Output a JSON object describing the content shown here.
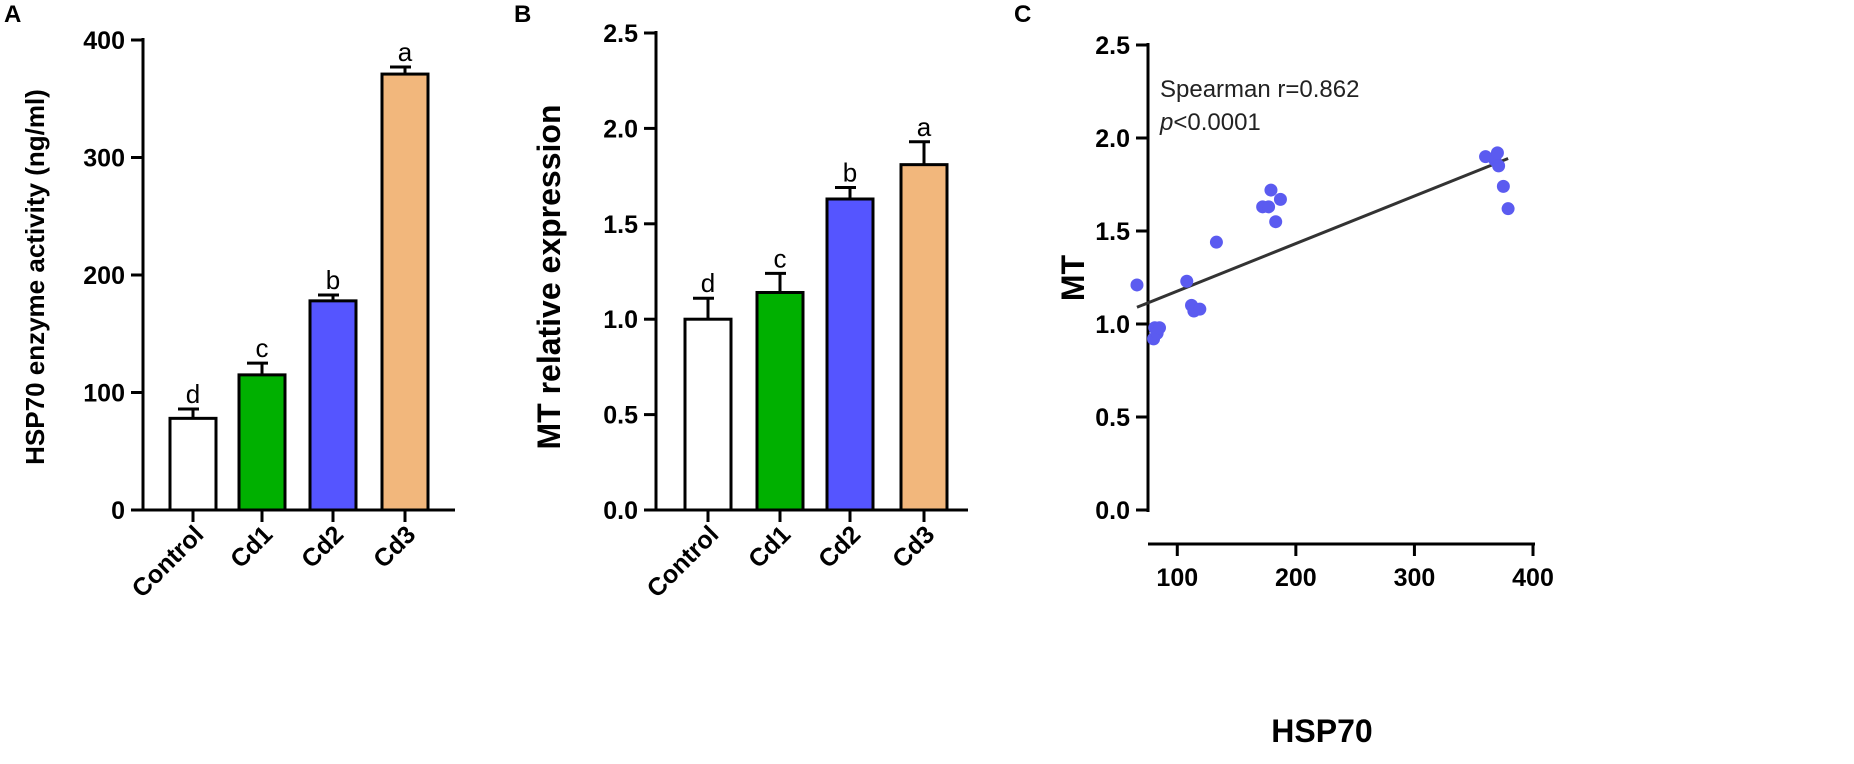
{
  "panels": [
    {
      "letter": "A"
    },
    {
      "letter": "B"
    },
    {
      "letter": "C"
    }
  ],
  "chart_data": [
    {
      "type": "bar",
      "categories": [
        "Control",
        "Cd1",
        "Cd2",
        "Cd3"
      ],
      "values": [
        78,
        115,
        178,
        371
      ],
      "errors": [
        8,
        10,
        5,
        6
      ],
      "significance": [
        "d",
        "c",
        "b",
        "a"
      ],
      "colors": [
        "#ffffff",
        "#00b000",
        "#5555ff",
        "#f2b77c"
      ],
      "title": "",
      "xlabel": "",
      "ylabel": "HSP70 enzyme activity (ng/ml)",
      "ylim": [
        0,
        400
      ],
      "yticks": [
        0,
        100,
        200,
        300,
        400
      ],
      "grid": false
    },
    {
      "type": "bar",
      "categories": [
        "Control",
        "Cd1",
        "Cd2",
        "Cd3"
      ],
      "values": [
        1.0,
        1.14,
        1.63,
        1.81
      ],
      "errors": [
        0.11,
        0.1,
        0.06,
        0.12
      ],
      "significance": [
        "d",
        "c",
        "b",
        "a"
      ],
      "colors": [
        "#ffffff",
        "#00b000",
        "#5555ff",
        "#f2b77c"
      ],
      "title": "",
      "xlabel": "",
      "ylabel": "MT relative expression",
      "ylim": [
        0,
        2.5
      ],
      "yticks": [
        "0.0",
        "0.5",
        "1.0",
        "1.5",
        "2.0",
        "2.5"
      ],
      "grid": false
    },
    {
      "type": "scatter",
      "title": "",
      "xlabel": "HSP70",
      "ylabel": "MT",
      "xlim": [
        50,
        400
      ],
      "ylim": [
        0,
        2.5
      ],
      "xticks": [
        "100",
        "200",
        "300",
        "400"
      ],
      "yticks": [
        "0.0",
        "0.5",
        "1.0",
        "1.5",
        "2.0",
        "2.5"
      ],
      "points": [
        {
          "x": 66,
          "y": 1.21
        },
        {
          "x": 80,
          "y": 0.92
        },
        {
          "x": 81,
          "y": 0.98
        },
        {
          "x": 83,
          "y": 0.95
        },
        {
          "x": 85,
          "y": 0.98
        },
        {
          "x": 108,
          "y": 1.23
        },
        {
          "x": 112,
          "y": 1.1
        },
        {
          "x": 114,
          "y": 1.07
        },
        {
          "x": 119,
          "y": 1.08
        },
        {
          "x": 133,
          "y": 1.44
        },
        {
          "x": 172,
          "y": 1.63
        },
        {
          "x": 177,
          "y": 1.63
        },
        {
          "x": 179,
          "y": 1.72
        },
        {
          "x": 183,
          "y": 1.55
        },
        {
          "x": 187,
          "y": 1.67
        },
        {
          "x": 360,
          "y": 1.9
        },
        {
          "x": 368,
          "y": 1.88
        },
        {
          "x": 370,
          "y": 1.92
        },
        {
          "x": 371,
          "y": 1.85
        },
        {
          "x": 375,
          "y": 1.74
        },
        {
          "x": 379,
          "y": 1.62
        }
      ],
      "regression_line": {
        "x": [
          66,
          379
        ],
        "y": [
          1.09,
          1.89
        ]
      },
      "point_color": "#5b5bf0",
      "line_color": "#333333",
      "annotation": {
        "stat": "Spearman r=0.862",
        "p_symbol": "p",
        "p_value": "<0.0001"
      },
      "grid": false
    }
  ]
}
